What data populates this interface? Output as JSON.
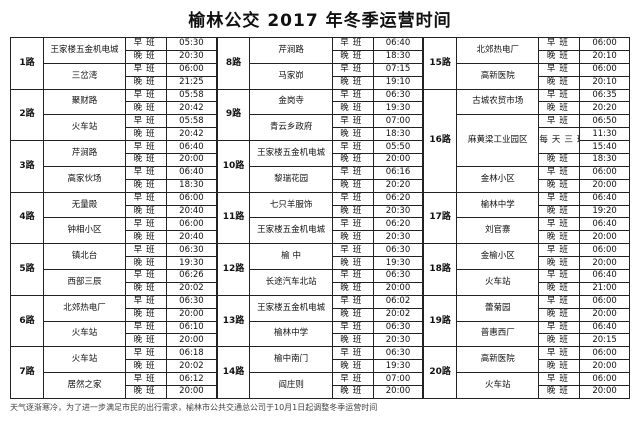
{
  "title": "榆林公交 2017 年冬季运营时间",
  "columns": [
    {
      "routes": [
        {
          "route": "1路",
          "terminals": [
            {
              "name": "王家楼五金机电城",
              "rows": [
                {
                  "shift": "早班",
                  "time": "05:30"
                },
                {
                  "shift": "晚班",
                  "time": "20:30"
                }
              ]
            },
            {
              "name": "三岔湾",
              "rows": [
                {
                  "shift": "早班",
                  "time": "06:00"
                },
                {
                  "shift": "晚班",
                  "time": "21:25"
                }
              ]
            }
          ]
        },
        {
          "route": "2路",
          "terminals": [
            {
              "name": "聚财路",
              "rows": [
                {
                  "shift": "早班",
                  "time": "05:58"
                },
                {
                  "shift": "晚班",
                  "time": "20:42"
                }
              ]
            },
            {
              "name": "火车站",
              "rows": [
                {
                  "shift": "早班",
                  "time": "05:58"
                },
                {
                  "shift": "晚班",
                  "time": "20:42"
                }
              ]
            }
          ]
        },
        {
          "route": "3路",
          "terminals": [
            {
              "name": "芹涧路",
              "rows": [
                {
                  "shift": "早班",
                  "time": "06:40"
                },
                {
                  "shift": "晚班",
                  "time": "20:00"
                }
              ]
            },
            {
              "name": "高家伙场",
              "rows": [
                {
                  "shift": "早班",
                  "time": "06:40"
                },
                {
                  "shift": "晚班",
                  "time": "18:30"
                }
              ]
            }
          ]
        },
        {
          "route": "4路",
          "terminals": [
            {
              "name": "无量殿",
              "rows": [
                {
                  "shift": "早班",
                  "time": "06:00"
                },
                {
                  "shift": "晚班",
                  "time": "20:40"
                }
              ]
            },
            {
              "name": "钟相小区",
              "rows": [
                {
                  "shift": "早班",
                  "time": "06:00"
                },
                {
                  "shift": "晚班",
                  "time": "20:40"
                }
              ]
            }
          ]
        },
        {
          "route": "5路",
          "terminals": [
            {
              "name": "镇北台",
              "rows": [
                {
                  "shift": "早班",
                  "time": "06:30"
                },
                {
                  "shift": "晚班",
                  "time": "19:30"
                }
              ]
            },
            {
              "name": "西部三辰",
              "rows": [
                {
                  "shift": "早班",
                  "time": "06:26"
                },
                {
                  "shift": "晚班",
                  "time": "20:02"
                }
              ]
            }
          ]
        },
        {
          "route": "6路",
          "terminals": [
            {
              "name": "北郊热电厂",
              "rows": [
                {
                  "shift": "早班",
                  "time": "06:30"
                },
                {
                  "shift": "晚班",
                  "time": "20:00"
                }
              ]
            },
            {
              "name": "火车站",
              "rows": [
                {
                  "shift": "早班",
                  "time": "06:10"
                },
                {
                  "shift": "晚班",
                  "time": "20:00"
                }
              ]
            }
          ]
        },
        {
          "route": "7路",
          "terminals": [
            {
              "name": "火车站",
              "rows": [
                {
                  "shift": "早班",
                  "time": "06:18"
                },
                {
                  "shift": "晚班",
                  "time": "20:02"
                }
              ]
            },
            {
              "name": "居然之家",
              "rows": [
                {
                  "shift": "早班",
                  "time": "06:12"
                },
                {
                  "shift": "晚班",
                  "time": "20:00"
                }
              ]
            }
          ]
        }
      ]
    },
    {
      "routes": [
        {
          "route": "8路",
          "terminals": [
            {
              "name": "芹涧路",
              "rows": [
                {
                  "shift": "早班",
                  "time": "06:40"
                },
                {
                  "shift": "晚班",
                  "time": "18:30"
                }
              ]
            },
            {
              "name": "马家峁",
              "rows": [
                {
                  "shift": "早班",
                  "time": "07:15"
                },
                {
                  "shift": "晚班",
                  "time": "19:10"
                }
              ]
            }
          ]
        },
        {
          "route": "9路",
          "terminals": [
            {
              "name": "金岗寺",
              "rows": [
                {
                  "shift": "早班",
                  "time": "06:30"
                },
                {
                  "shift": "晚班",
                  "time": "19:30"
                }
              ]
            },
            {
              "name": "青云乡政府",
              "rows": [
                {
                  "shift": "早班",
                  "time": "07:00"
                },
                {
                  "shift": "晚班",
                  "time": "18:30"
                }
              ]
            }
          ]
        },
        {
          "route": "10路",
          "terminals": [
            {
              "name": "王家楼五金机电城",
              "rows": [
                {
                  "shift": "早班",
                  "time": "05:50"
                },
                {
                  "shift": "晚班",
                  "time": "20:00"
                }
              ]
            },
            {
              "name": "黎瑞花园",
              "rows": [
                {
                  "shift": "早班",
                  "time": "06:16"
                },
                {
                  "shift": "晚班",
                  "time": "20:20"
                }
              ]
            }
          ]
        },
        {
          "route": "11路",
          "terminals": [
            {
              "name": "七只羊服饰",
              "rows": [
                {
                  "shift": "早班",
                  "time": "06:20"
                },
                {
                  "shift": "晚班",
                  "time": "20:30"
                }
              ]
            },
            {
              "name": "王家楼五金机电城",
              "rows": [
                {
                  "shift": "早班",
                  "time": "06:20"
                },
                {
                  "shift": "晚班",
                  "time": "20:30"
                }
              ]
            }
          ]
        },
        {
          "route": "12路",
          "terminals": [
            {
              "name": "榆 中",
              "rows": [
                {
                  "shift": "早班",
                  "time": "06:30"
                },
                {
                  "shift": "晚班",
                  "time": "19:30"
                }
              ]
            },
            {
              "name": "长途汽车北站",
              "rows": [
                {
                  "shift": "早班",
                  "time": "06:30"
                },
                {
                  "shift": "晚班",
                  "time": "20:00"
                }
              ]
            }
          ]
        },
        {
          "route": "13路",
          "terminals": [
            {
              "name": "王家楼五金机电城",
              "rows": [
                {
                  "shift": "早班",
                  "time": "06:02"
                },
                {
                  "shift": "晚班",
                  "time": "20:02"
                }
              ]
            },
            {
              "name": "榆林中学",
              "rows": [
                {
                  "shift": "早班",
                  "time": "06:30"
                },
                {
                  "shift": "晚班",
                  "time": "20:30"
                }
              ]
            }
          ]
        },
        {
          "route": "14路",
          "terminals": [
            {
              "name": "榆中南门",
              "rows": [
                {
                  "shift": "早班",
                  "time": "06:30"
                },
                {
                  "shift": "晚班",
                  "time": "19:30"
                }
              ]
            },
            {
              "name": "阎庄则",
              "rows": [
                {
                  "shift": "早班",
                  "time": "07:00"
                },
                {
                  "shift": "晚班",
                  "time": "20:00"
                }
              ]
            }
          ]
        }
      ]
    },
    {
      "routes": [
        {
          "route": "15路",
          "terminals": [
            {
              "name": "北郊热电厂",
              "rows": [
                {
                  "shift": "早班",
                  "time": "06:00"
                },
                {
                  "shift": "晚班",
                  "time": "20:10"
                }
              ]
            },
            {
              "name": "高新医院",
              "rows": [
                {
                  "shift": "早班",
                  "time": "06:00"
                },
                {
                  "shift": "晚班",
                  "time": "20:10"
                }
              ]
            }
          ]
        },
        {
          "route": "16路",
          "terminals": [
            {
              "name": "古城农贸市场",
              "rows": [
                {
                  "shift": "早班",
                  "time": "06:35"
                },
                {
                  "shift": "晚班",
                  "time": "20:20"
                }
              ]
            },
            {
              "name": "麻黄梁工业园区",
              "rows": [
                {
                  "shift": "早班",
                  "time": "06:50"
                },
                {
                  "shift": "每天三班",
                  "time": "11:30"
                },
                {
                  "time": "15:40"
                },
                {
                  "shift": "晚班",
                  "time": "18:30"
                }
              ]
            },
            {
              "name": "金林小区",
              "rows": [
                {
                  "shift": "早班",
                  "time": "06:00"
                },
                {
                  "shift": "晚班",
                  "time": "20:00"
                }
              ]
            }
          ]
        },
        {
          "route": "17路",
          "terminals": [
            {
              "name": "榆林中学",
              "rows": [
                {
                  "shift": "早班",
                  "time": "06:40"
                },
                {
                  "shift": "晚班",
                  "time": "19:20"
                }
              ]
            },
            {
              "name": "刘官寨",
              "rows": [
                {
                  "shift": "早班",
                  "time": "06:40"
                },
                {
                  "shift": "晚班",
                  "time": "20:00"
                }
              ]
            }
          ]
        },
        {
          "route": "18路",
          "terminals": [
            {
              "name": "金榆小区",
              "rows": [
                {
                  "shift": "早班",
                  "time": "06:00"
                },
                {
                  "shift": "晚班",
                  "time": "20:00"
                }
              ]
            },
            {
              "name": "火车站",
              "rows": [
                {
                  "shift": "早班",
                  "time": "06:40"
                },
                {
                  "shift": "晚班",
                  "time": "21:00"
                }
              ]
            }
          ]
        },
        {
          "route": "19路",
          "terminals": [
            {
              "name": "蕾菊园",
              "rows": [
                {
                  "shift": "早班",
                  "time": "06:00"
                },
                {
                  "shift": "晚班",
                  "time": "20:00"
                }
              ]
            },
            {
              "name": "普惠西厂",
              "rows": [
                {
                  "shift": "早班",
                  "time": "06:40"
                },
                {
                  "shift": "晚班",
                  "time": "20:15"
                }
              ]
            }
          ]
        },
        {
          "route": "20路",
          "terminals": [
            {
              "name": "高新医院",
              "rows": [
                {
                  "shift": "早班",
                  "time": "06:00"
                },
                {
                  "shift": "晚班",
                  "time": "20:00"
                }
              ]
            },
            {
              "name": "火车站",
              "rows": [
                {
                  "shift": "早班",
                  "time": "06:00"
                },
                {
                  "shift": "晚班",
                  "time": "20:00"
                }
              ]
            }
          ]
        }
      ]
    }
  ],
  "footer": "天气逐渐寒冷，为了进一步满足市民的出行需求，榆林市公共交通总公司于10月1日起调整冬季运营时间"
}
